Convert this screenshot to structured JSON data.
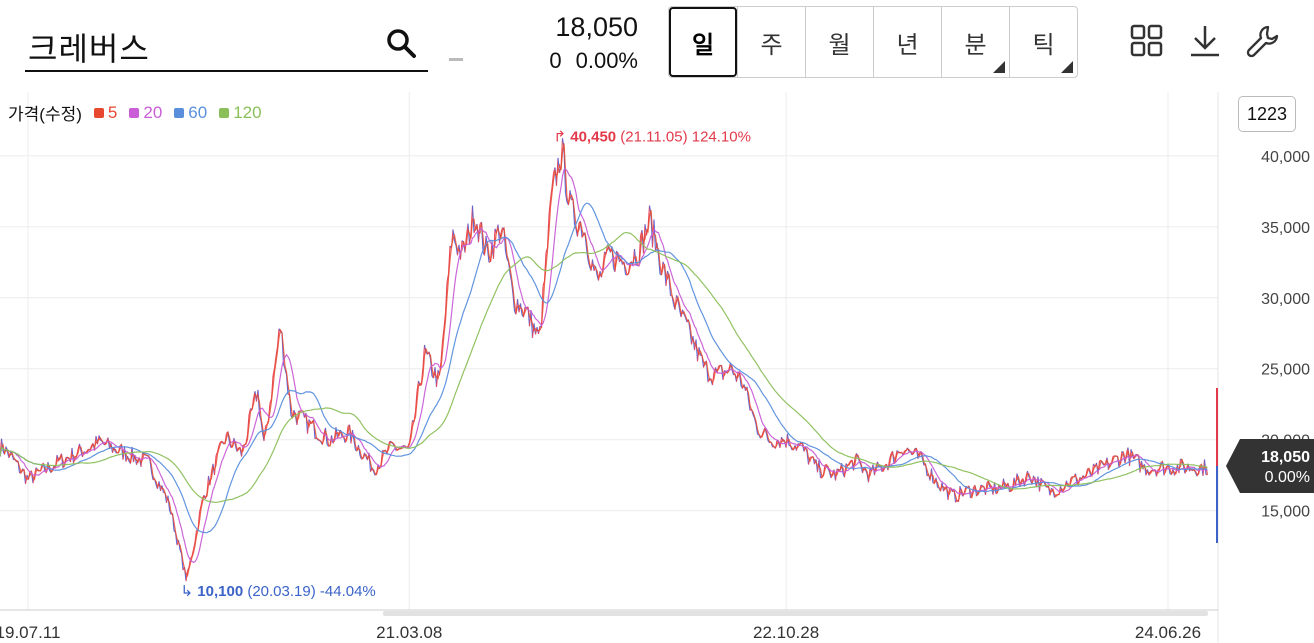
{
  "header": {
    "stock_name": "크레버스",
    "price": "18,050",
    "change_abs": "0",
    "change_pct": "0.00%",
    "dash": "-"
  },
  "periods": [
    {
      "label": "일",
      "active": true,
      "has_menu": false
    },
    {
      "label": "주",
      "active": false,
      "has_menu": false
    },
    {
      "label": "월",
      "active": false,
      "has_menu": false
    },
    {
      "label": "년",
      "active": false,
      "has_menu": false
    },
    {
      "label": "분",
      "active": false,
      "has_menu": true
    },
    {
      "label": "틱",
      "active": false,
      "has_menu": true
    }
  ],
  "tools": {
    "grid_icon": "grid-icon",
    "download_icon": "download-icon",
    "settings_icon": "wrench-icon"
  },
  "zoom_label": "1223",
  "legend": {
    "title": "가격(수정)",
    "items": [
      {
        "label": "5",
        "color": "#e8482f"
      },
      {
        "label": "20",
        "color": "#c95ed6"
      },
      {
        "label": "60",
        "color": "#5a8fdc"
      },
      {
        "label": "120",
        "color": "#8bbf5a"
      }
    ]
  },
  "chart_data": {
    "type": "line",
    "title": "",
    "ylim": [
      8000,
      44500
    ],
    "y_ticks": [
      15000,
      20000,
      25000,
      30000,
      35000,
      40000
    ],
    "y_tick_labels": [
      "15,000",
      "20,000",
      "25,000",
      "30,000",
      "35,000",
      "40,000"
    ],
    "x_ticks": [
      "19.07.11",
      "21.03.08",
      "22.10.28",
      "24.06.26"
    ],
    "grid": true,
    "price_series": [
      [
        "19.06.01",
        19500
      ],
      [
        "19.07.11",
        17200
      ],
      [
        "19.09.01",
        18500
      ],
      [
        "19.11.01",
        19800
      ],
      [
        "19.12.15",
        19000
      ],
      [
        "20.01.20",
        18300
      ],
      [
        "20.02.20",
        15500
      ],
      [
        "20.03.19",
        10100
      ],
      [
        "20.04.15",
        16000
      ],
      [
        "20.05.20",
        20200
      ],
      [
        "20.06.15",
        19000
      ],
      [
        "20.07.10",
        23500
      ],
      [
        "20.07.20",
        19500
      ],
      [
        "20.08.15",
        28000
      ],
      [
        "20.09.01",
        22000
      ],
      [
        "20.10.01",
        21000
      ],
      [
        "20.11.01",
        20000
      ],
      [
        "20.12.01",
        20500
      ],
      [
        "21.01.10",
        18000
      ],
      [
        "21.02.10",
        19500
      ],
      [
        "21.03.08",
        19200
      ],
      [
        "21.04.01",
        26000
      ],
      [
        "21.04.25",
        24000
      ],
      [
        "21.05.15",
        34500
      ],
      [
        "21.06.01",
        33000
      ],
      [
        "21.06.20",
        36000
      ],
      [
        "21.07.10",
        33000
      ],
      [
        "21.08.01",
        35000
      ],
      [
        "21.08.20",
        30000
      ],
      [
        "21.09.10",
        29000
      ],
      [
        "21.10.01",
        27000
      ],
      [
        "21.10.20",
        37000
      ],
      [
        "21.11.05",
        40450
      ],
      [
        "21.11.20",
        36000
      ],
      [
        "21.12.10",
        35000
      ],
      [
        "22.01.01",
        31000
      ],
      [
        "22.01.20",
        33000
      ],
      [
        "22.02.15",
        32500
      ],
      [
        "22.03.10",
        33500
      ],
      [
        "22.03.25",
        35500
      ],
      [
        "22.04.15",
        32000
      ],
      [
        "22.05.10",
        29000
      ],
      [
        "22.06.01",
        27000
      ],
      [
        "22.06.20",
        25000
      ],
      [
        "22.07.10",
        24500
      ],
      [
        "22.08.01",
        25000
      ],
      [
        "22.08.20",
        24000
      ],
      [
        "22.09.10",
        21000
      ],
      [
        "22.10.01",
        20000
      ],
      [
        "22.10.28",
        20000
      ],
      [
        "22.11.20",
        19500
      ],
      [
        "22.12.15",
        18000
      ],
      [
        "23.01.15",
        17500
      ],
      [
        "23.02.15",
        18500
      ],
      [
        "23.03.10",
        17500
      ],
      [
        "23.04.10",
        18500
      ],
      [
        "23.05.01",
        19500
      ],
      [
        "23.06.01",
        18500
      ],
      [
        "23.06.25",
        17000
      ],
      [
        "23.07.20",
        16000
      ],
      [
        "23.08.20",
        16500
      ],
      [
        "23.09.20",
        16500
      ],
      [
        "23.10.20",
        16800
      ],
      [
        "23.11.20",
        17500
      ],
      [
        "23.12.20",
        16300
      ],
      [
        "24.01.20",
        17000
      ],
      [
        "24.02.20",
        17500
      ],
      [
        "24.03.20",
        18200
      ],
      [
        "24.04.20",
        19000
      ],
      [
        "24.05.20",
        18000
      ],
      [
        "24.06.26",
        18050
      ]
    ],
    "ma_series": [
      {
        "name": "5",
        "period": 5
      },
      {
        "name": "20",
        "period": 20
      },
      {
        "name": "60",
        "period": 60
      },
      {
        "name": "120",
        "period": 120
      }
    ],
    "max_annotation": {
      "value": "40,450",
      "date": "(21.11.05)",
      "pct": "124.10%"
    },
    "min_annotation": {
      "value": "10,100",
      "date": "(20.03.19)",
      "pct": "-44.04%"
    },
    "current": {
      "price": "18,050",
      "pct": "0.00%"
    }
  }
}
